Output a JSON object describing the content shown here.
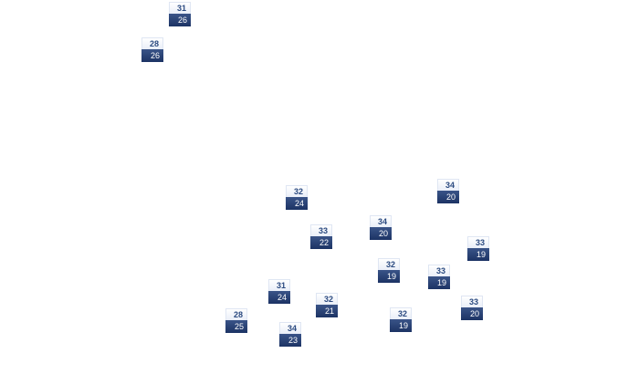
{
  "stations": [
    {
      "high": "31",
      "low": "26"
    },
    {
      "high": "28",
      "low": "26"
    },
    {
      "high": "32",
      "low": "24"
    },
    {
      "high": "34",
      "low": "20"
    },
    {
      "high": "33",
      "low": "22"
    },
    {
      "high": "34",
      "low": "20"
    },
    {
      "high": "33",
      "low": "19"
    },
    {
      "high": "32",
      "low": "19"
    },
    {
      "high": "33",
      "low": "19"
    },
    {
      "high": "31",
      "low": "24"
    },
    {
      "high": "32",
      "low": "21"
    },
    {
      "high": "33",
      "low": "20"
    },
    {
      "high": "28",
      "low": "25"
    },
    {
      "high": "32",
      "low": "19"
    },
    {
      "high": "34",
      "low": "23"
    }
  ],
  "colors": {
    "high_text": "#2b4a80",
    "low_bg": "#1c3364"
  }
}
